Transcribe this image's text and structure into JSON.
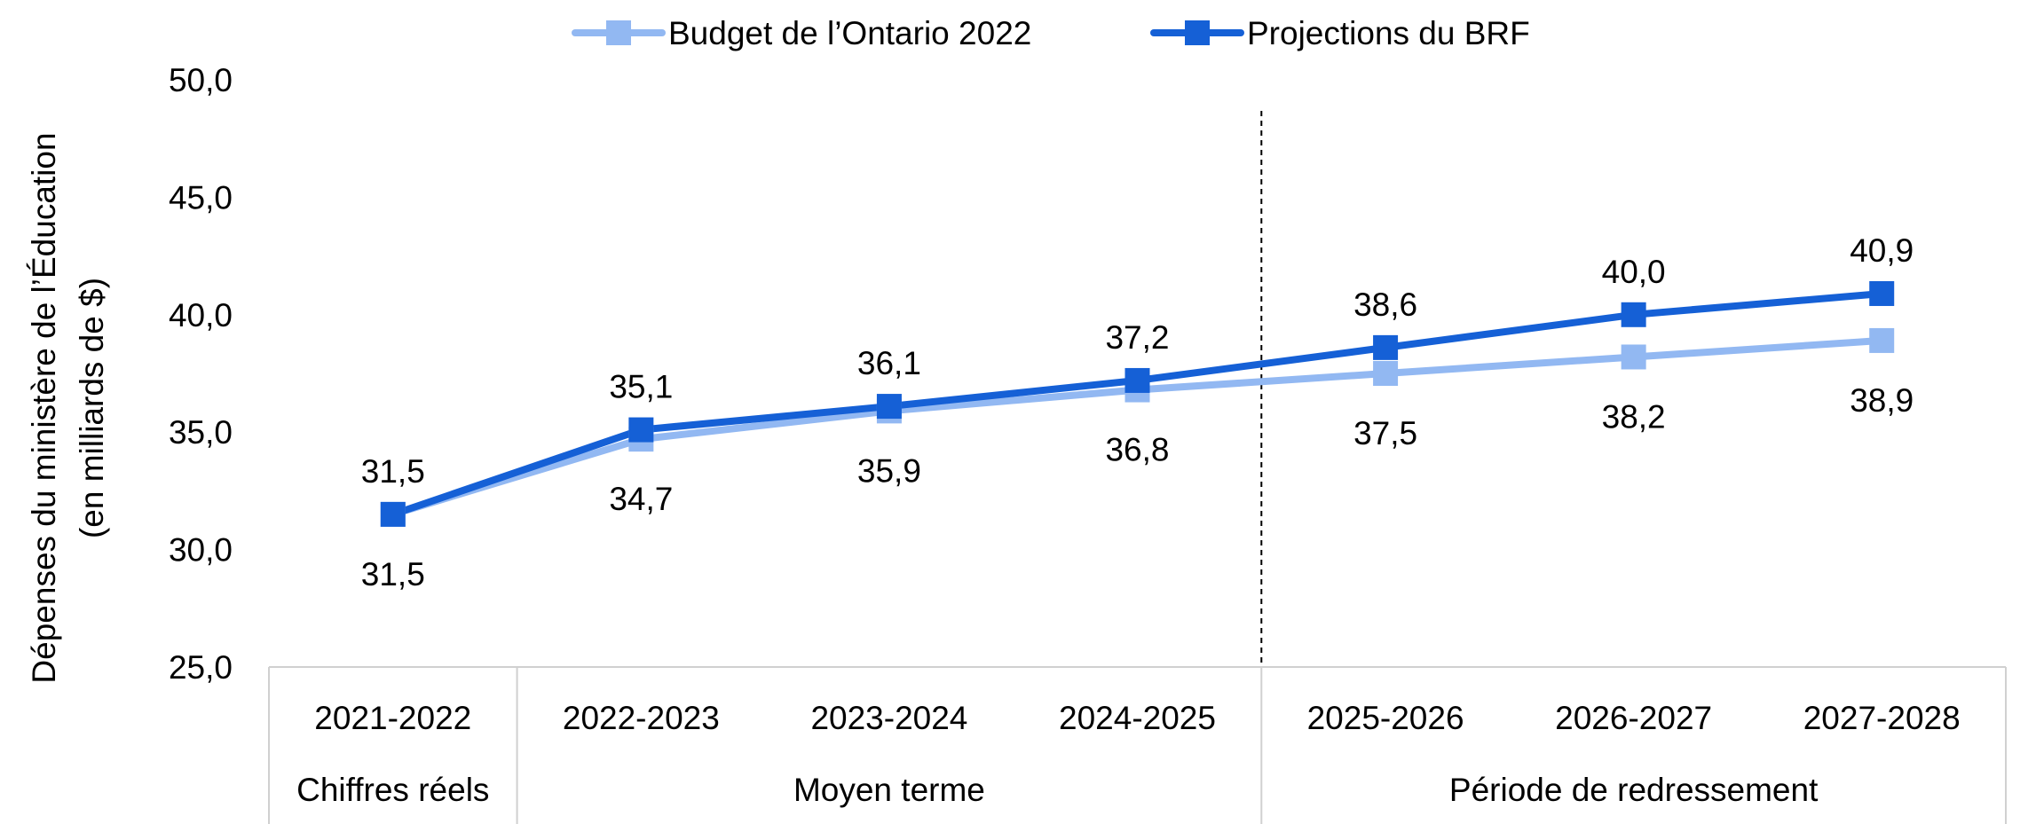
{
  "chart_data": {
    "type": "line",
    "title": "",
    "categories": [
      "2021-2022",
      "2022-2023",
      "2023-2024",
      "2024-2025",
      "2025-2026",
      "2026-2027",
      "2027-2028"
    ],
    "category_groups": [
      {
        "label": "Chiffres réels",
        "start": 0,
        "end": 0
      },
      {
        "label": "Moyen terme",
        "start": 1,
        "end": 3
      },
      {
        "label": "Période de redressement",
        "start": 4,
        "end": 6
      }
    ],
    "series": [
      {
        "name": "Budget de l’Ontario 2022",
        "color": "#92b8f2",
        "values": [
          31.5,
          34.7,
          35.9,
          36.8,
          37.5,
          38.2,
          38.9
        ],
        "labels": [
          "31,5",
          "34,7",
          "35,9",
          "36,8",
          "37,5",
          "38,2",
          "38,9"
        ],
        "label_position": "below"
      },
      {
        "name": "Projections du BRF",
        "color": "#1560d6",
        "values": [
          31.5,
          35.1,
          36.1,
          37.2,
          38.6,
          40.0,
          40.9
        ],
        "labels": [
          "31,5",
          "35,1",
          "36,1",
          "37,2",
          "38,6",
          "40,0",
          "40,9"
        ],
        "label_position": "above"
      }
    ],
    "ylabel_lines": [
      "Dépenses du ministère de l’Éducation",
      "(en milliards de $)"
    ],
    "xlabel": "",
    "ylim": [
      25,
      50
    ],
    "yticks": [
      25,
      30,
      35,
      40,
      45,
      50
    ],
    "ytick_labels": [
      "25,0",
      "30,0",
      "35,0",
      "40,0",
      "45,0",
      "50,0"
    ],
    "divider_after_category": 3,
    "legend_position": "top",
    "grid": false
  }
}
